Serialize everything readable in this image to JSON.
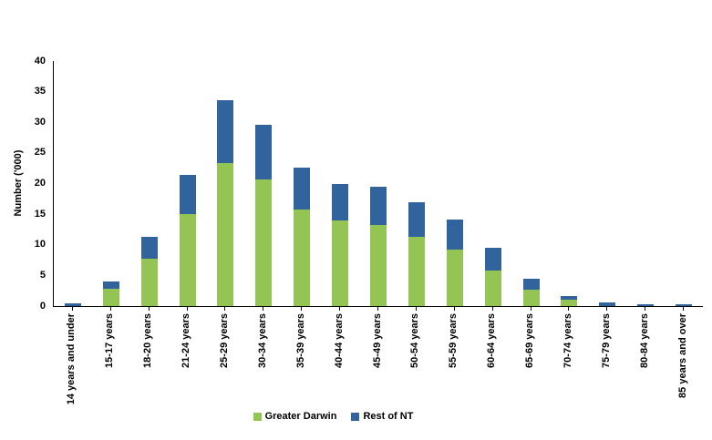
{
  "chart_data": {
    "type": "bar",
    "stacked": true,
    "title": "",
    "xlabel": "",
    "ylabel": "Number ('000)",
    "ylim": [
      0,
      40
    ],
    "yticks": [
      0,
      5,
      10,
      15,
      20,
      25,
      30,
      35,
      40
    ],
    "grid": false,
    "legend_position": "bottom",
    "categories": [
      "14 years and under",
      "15-17 years",
      "18-20 years",
      "21-24 years",
      "25-29 years",
      "30-34 years",
      "35-39 years",
      "40-44 years",
      "45-49 years",
      "50-54 years",
      "55-59 years",
      "60-64 years",
      "65-69 years",
      "70-74 years",
      "75-79 years",
      "80-84 years",
      "85 years and over"
    ],
    "series": [
      {
        "name": "Greater Darwin",
        "color": "#94C554",
        "values": [
          0,
          2.8,
          7.7,
          15.0,
          23.3,
          20.7,
          15.8,
          14.0,
          13.2,
          11.3,
          9.2,
          5.8,
          2.7,
          1.0,
          0,
          0,
          0
        ]
      },
      {
        "name": "Rest of NT",
        "color": "#31639C",
        "values": [
          0.4,
          1.2,
          3.6,
          6.4,
          10.3,
          8.9,
          6.8,
          6.0,
          6.3,
          5.7,
          4.9,
          3.7,
          1.8,
          0.6,
          0.6,
          0.3,
          0.25
        ]
      }
    ],
    "colors": {
      "background": "#FFFFFF",
      "axis": "#000000",
      "text": "#000000"
    }
  }
}
